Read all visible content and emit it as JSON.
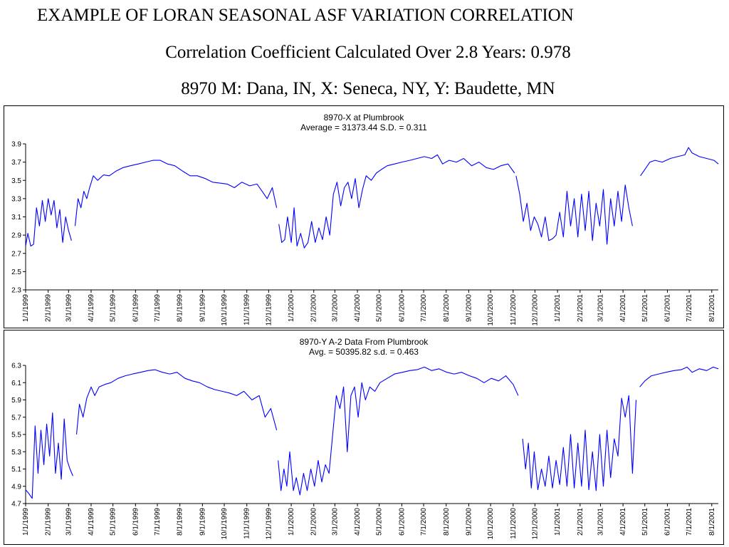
{
  "slide": {
    "title": "EXAMPLE OF LORAN SEASONAL ASF VARIATION CORRELATION",
    "subtitle": "Correlation  Coefficient  Calculated Over 2.8 Years:  0.978",
    "stations": "8970 M: Dana, IN, X: Seneca, NY, Y: Baudette, MN"
  },
  "chart_data": [
    {
      "type": "line",
      "title": "8970-X at Plumbrook",
      "subtitle": "Average = 31373.44      S.D. =  0.311",
      "color": "#0000ff",
      "ylim": [
        2.3,
        3.9
      ],
      "yticks": [
        2.3,
        2.5,
        2.7,
        2.9,
        3.1,
        3.3,
        3.5,
        3.7,
        3.9
      ],
      "ytick_labels": [
        "2.3",
        "2.5",
        "2.7",
        "2.9",
        "3.1",
        "3.3",
        "3.5",
        "3.7",
        "3.9"
      ],
      "xlim": [
        "1999-01-01",
        "2001-08-10"
      ],
      "xtick_labels": [
        "1/1/1999",
        "2/1/1999",
        "3/1/1999",
        "4/1/1999",
        "5/1/1999",
        "6/1/1999",
        "7/1/1999",
        "8/1/1999",
        "9/1/1999",
        "10/1/1999",
        "11/1/1999",
        "12/1/1999",
        "1/1/2000",
        "2/1/2000",
        "3/1/2000",
        "4/1/2000",
        "5/1/2000",
        "6/1/2000",
        "7/1/2000",
        "8/1/2000",
        "9/1/2000",
        "10/1/2000",
        "11/1/2000",
        "12/1/2000",
        "1/1/2001",
        "2/1/2001",
        "3/1/2001",
        "4/1/2001",
        "5/1/2001",
        "6/1/2001",
        "7/1/2001",
        "8/1/2001"
      ],
      "series": [
        {
          "segments": [
            {
              "x": [
                "1999-01-01",
                "1999-01-04",
                "1999-01-08",
                "1999-01-12",
                "1999-01-16",
                "1999-01-20",
                "1999-01-24",
                "1999-01-28",
                "1999-02-01",
                "1999-02-05",
                "1999-02-09",
                "1999-02-13",
                "1999-02-17",
                "1999-02-21",
                "1999-02-25",
                "1999-03-01",
                "1999-03-05"
              ],
              "y": [
                2.78,
                2.92,
                2.78,
                2.8,
                3.2,
                3.0,
                3.28,
                3.05,
                3.3,
                3.12,
                3.28,
                2.98,
                3.18,
                2.82,
                3.1,
                2.95,
                2.84
              ]
            },
            {
              "x": [
                "1999-03-10",
                "1999-03-14",
                "1999-03-18",
                "1999-03-22",
                "1999-03-26",
                "1999-03-30",
                "1999-04-04",
                "1999-04-10",
                "1999-04-18",
                "1999-04-26",
                "1999-05-05",
                "1999-05-15",
                "1999-05-25",
                "1999-06-05",
                "1999-06-15",
                "1999-06-25",
                "1999-07-05",
                "1999-07-15",
                "1999-07-25",
                "1999-08-05",
                "1999-08-15",
                "1999-08-25",
                "1999-09-05",
                "1999-09-15",
                "1999-09-25",
                "1999-10-05",
                "1999-10-15",
                "1999-10-25",
                "1999-11-05",
                "1999-11-15",
                "1999-11-22",
                "1999-11-29",
                "1999-12-06",
                "1999-12-12"
              ],
              "y": [
                3.0,
                3.3,
                3.2,
                3.38,
                3.3,
                3.42,
                3.55,
                3.5,
                3.56,
                3.55,
                3.6,
                3.64,
                3.66,
                3.68,
                3.7,
                3.72,
                3.72,
                3.68,
                3.66,
                3.6,
                3.55,
                3.55,
                3.52,
                3.48,
                3.47,
                3.46,
                3.42,
                3.48,
                3.44,
                3.46,
                3.38,
                3.3,
                3.42,
                3.2
              ]
            },
            {
              "x": [
                "1999-12-15",
                "1999-12-19",
                "1999-12-23",
                "1999-12-27",
                "2000-01-01",
                "2000-01-05",
                "2000-01-09",
                "2000-01-14",
                "2000-01-19",
                "2000-01-24",
                "2000-01-29",
                "2000-02-03",
                "2000-02-08",
                "2000-02-13",
                "2000-02-18",
                "2000-02-23",
                "2000-02-28",
                "2000-03-04",
                "2000-03-09",
                "2000-03-14",
                "2000-03-19",
                "2000-03-24",
                "2000-03-29",
                "2000-04-03",
                "2000-04-08",
                "2000-04-13",
                "2000-04-20",
                "2000-04-27",
                "2000-05-04",
                "2000-05-12",
                "2000-05-22",
                "2000-06-01",
                "2000-06-12",
                "2000-06-22",
                "2000-07-02",
                "2000-07-12",
                "2000-07-20",
                "2000-07-27",
                "2000-08-05",
                "2000-08-15",
                "2000-08-25",
                "2000-09-05",
                "2000-09-15",
                "2000-09-25",
                "2000-10-05",
                "2000-10-15",
                "2000-10-25",
                "2000-11-03"
              ],
              "y": [
                3.02,
                2.82,
                2.85,
                3.1,
                2.82,
                3.2,
                2.78,
                2.92,
                2.76,
                2.82,
                3.05,
                2.82,
                2.98,
                2.85,
                3.1,
                2.9,
                3.35,
                3.48,
                3.22,
                3.42,
                3.48,
                3.3,
                3.52,
                3.2,
                3.4,
                3.55,
                3.5,
                3.58,
                3.62,
                3.66,
                3.68,
                3.7,
                3.72,
                3.74,
                3.76,
                3.74,
                3.78,
                3.68,
                3.72,
                3.7,
                3.74,
                3.66,
                3.7,
                3.64,
                3.62,
                3.66,
                3.68,
                3.58
              ]
            },
            {
              "x": [
                "2000-11-05",
                "2000-11-10",
                "2000-11-15",
                "2000-11-20",
                "2000-11-25",
                "2000-11-30",
                "2000-12-05",
                "2000-12-10",
                "2000-12-15",
                "2000-12-20",
                "2000-12-25",
                "2000-12-30",
                "2001-01-04",
                "2001-01-09",
                "2001-01-14",
                "2001-01-19",
                "2001-01-24",
                "2001-01-29",
                "2001-02-03",
                "2001-02-08",
                "2001-02-13",
                "2001-02-18",
                "2001-02-23",
                "2001-02-28",
                "2001-03-05",
                "2001-03-10",
                "2001-03-15",
                "2001-03-20",
                "2001-03-25",
                "2001-03-30",
                "2001-04-04",
                "2001-04-09",
                "2001-04-14"
              ],
              "y": [
                3.55,
                3.35,
                3.05,
                3.25,
                2.95,
                3.1,
                3.02,
                2.88,
                3.1,
                2.84,
                2.86,
                2.9,
                3.15,
                2.88,
                3.38,
                3.0,
                3.3,
                2.88,
                3.35,
                2.95,
                3.38,
                2.84,
                3.25,
                3.0,
                3.4,
                2.8,
                3.3,
                3.0,
                3.38,
                3.05,
                3.45,
                3.2,
                3.0
              ]
            },
            {
              "x": [
                "2001-04-25",
                "2001-05-01",
                "2001-05-08",
                "2001-05-15",
                "2001-05-25",
                "2001-06-05",
                "2001-06-15",
                "2001-06-25",
                "2001-06-30",
                "2001-07-05",
                "2001-07-15",
                "2001-07-25",
                "2001-08-04",
                "2001-08-10"
              ],
              "y": [
                3.55,
                3.62,
                3.7,
                3.72,
                3.7,
                3.74,
                3.76,
                3.78,
                3.86,
                3.8,
                3.76,
                3.74,
                3.72,
                3.68
              ]
            }
          ]
        }
      ]
    },
    {
      "type": "line",
      "title": "8970-Y A-2 Data From Plumbrook",
      "subtitle": "Avg. = 50395.82     s.d. = 0.463",
      "color": "#0000ff",
      "ylim": [
        4.7,
        6.3
      ],
      "yticks": [
        4.7,
        4.9,
        5.1,
        5.3,
        5.5,
        5.7,
        5.9,
        6.1,
        6.3
      ],
      "ytick_labels": [
        "4.7",
        "4.9",
        "5.1",
        "5.3",
        "5.5",
        "5.7",
        "5.9",
        "6.1",
        "6.3"
      ],
      "xlim": [
        "1999-01-01",
        "2001-08-10"
      ],
      "xtick_labels": [
        "1/1/1999",
        "2/1/1999",
        "3/1/1999",
        "4/1/1999",
        "5/1/1999",
        "6/1/1999",
        "7/1/1999",
        "8/1/1999",
        "9/1/1999",
        "10/1/1999",
        "11/1/1999",
        "12/1/1999",
        "1/1/2000",
        "2/1/2000",
        "3/1/2000",
        "4/1/2000",
        "5/1/2000",
        "6/1/2000",
        "7/1/2000",
        "8/1/2000",
        "9/1/2000",
        "10/1/2000",
        "11/1/2000",
        "12/1/2000",
        "1/1/2001",
        "2/1/2001",
        "3/1/2001",
        "4/1/2001",
        "5/1/2001",
        "6/1/2001",
        "7/1/2001",
        "8/1/2001"
      ],
      "series": [
        {
          "segments": [
            {
              "x": [
                "1999-01-01",
                "1999-01-05",
                "1999-01-10",
                "1999-01-14",
                "1999-01-18",
                "1999-01-22",
                "1999-01-26",
                "1999-01-30",
                "1999-02-03",
                "1999-02-07",
                "1999-02-11",
                "1999-02-15",
                "1999-02-19",
                "1999-02-23",
                "1999-02-27",
                "1999-03-03",
                "1999-03-07"
              ],
              "y": [
                4.86,
                4.82,
                4.76,
                5.6,
                5.05,
                5.55,
                5.15,
                5.62,
                5.25,
                5.75,
                5.05,
                5.4,
                4.98,
                5.68,
                5.2,
                5.1,
                5.02
              ]
            },
            {
              "x": [
                "1999-03-12",
                "1999-03-16",
                "1999-03-21",
                "1999-03-26",
                "1999-04-01",
                "1999-04-06",
                "1999-04-12",
                "1999-04-20",
                "1999-04-28",
                "1999-05-08",
                "1999-05-18",
                "1999-05-28",
                "1999-06-08",
                "1999-06-18",
                "1999-06-28",
                "1999-07-08",
                "1999-07-18",
                "1999-07-28",
                "1999-08-08",
                "1999-08-18",
                "1999-08-28",
                "1999-09-08",
                "1999-09-18",
                "1999-09-28",
                "1999-10-08",
                "1999-10-18",
                "1999-10-28",
                "1999-11-08",
                "1999-11-18",
                "1999-11-26",
                "1999-12-04",
                "1999-12-12"
              ],
              "y": [
                5.5,
                5.85,
                5.7,
                5.92,
                6.05,
                5.95,
                6.05,
                6.08,
                6.1,
                6.15,
                6.18,
                6.2,
                6.22,
                6.24,
                6.25,
                6.22,
                6.2,
                6.22,
                6.15,
                6.12,
                6.1,
                6.05,
                6.02,
                6.0,
                5.98,
                5.95,
                6.0,
                5.9,
                5.95,
                5.7,
                5.8,
                5.55
              ]
            },
            {
              "x": [
                "1999-12-14",
                "1999-12-18",
                "1999-12-22",
                "1999-12-26",
                "1999-12-30",
                "2000-01-04",
                "2000-01-08",
                "2000-01-13",
                "2000-01-18",
                "2000-01-23",
                "2000-01-28",
                "2000-02-02",
                "2000-02-07",
                "2000-02-12",
                "2000-02-17",
                "2000-02-22",
                "2000-02-27",
                "2000-03-03",
                "2000-03-08",
                "2000-03-13",
                "2000-03-18",
                "2000-03-23",
                "2000-03-28",
                "2000-04-02",
                "2000-04-07",
                "2000-04-12",
                "2000-04-18",
                "2000-04-25",
                "2000-05-02",
                "2000-05-12",
                "2000-05-22",
                "2000-06-02",
                "2000-06-12",
                "2000-06-22",
                "2000-07-02",
                "2000-07-12",
                "2000-07-22",
                "2000-08-02",
                "2000-08-12",
                "2000-08-22",
                "2000-09-02",
                "2000-09-12",
                "2000-09-22",
                "2000-10-02",
                "2000-10-12",
                "2000-10-22",
                "2000-11-01",
                "2000-11-08"
              ],
              "y": [
                5.2,
                4.85,
                5.1,
                4.9,
                5.3,
                4.85,
                5.0,
                4.8,
                5.05,
                4.85,
                5.1,
                4.9,
                5.2,
                4.95,
                5.15,
                5.05,
                5.5,
                5.95,
                5.8,
                6.05,
                5.3,
                5.95,
                6.05,
                5.7,
                6.1,
                5.9,
                6.05,
                6.0,
                6.1,
                6.15,
                6.2,
                6.22,
                6.24,
                6.25,
                6.28,
                6.24,
                6.26,
                6.22,
                6.2,
                6.22,
                6.18,
                6.15,
                6.1,
                6.15,
                6.12,
                6.18,
                6.08,
                5.95
              ]
            },
            {
              "x": [
                "2000-11-14",
                "2000-11-18",
                "2000-11-22",
                "2000-11-26",
                "2000-11-30",
                "2000-12-05",
                "2000-12-10",
                "2000-12-15",
                "2000-12-20",
                "2000-12-25",
                "2000-12-30",
                "2001-01-04",
                "2001-01-09",
                "2001-01-14",
                "2001-01-19",
                "2001-01-24",
                "2001-01-29",
                "2001-02-03",
                "2001-02-08",
                "2001-02-13",
                "2001-02-18",
                "2001-02-23",
                "2001-02-28",
                "2001-03-05",
                "2001-03-10",
                "2001-03-15",
                "2001-03-20",
                "2001-03-25",
                "2001-03-30",
                "2001-04-04",
                "2001-04-09",
                "2001-04-14",
                "2001-04-19"
              ],
              "y": [
                5.45,
                5.1,
                5.4,
                4.88,
                5.3,
                4.86,
                5.1,
                4.9,
                5.25,
                4.88,
                5.2,
                4.92,
                5.35,
                4.9,
                5.5,
                4.88,
                5.4,
                4.9,
                5.55,
                4.86,
                5.3,
                4.85,
                5.5,
                4.9,
                5.55,
                5.0,
                5.45,
                5.25,
                5.92,
                5.7,
                5.95,
                5.05,
                5.9
              ]
            },
            {
              "x": [
                "2001-04-24",
                "2001-05-01",
                "2001-05-10",
                "2001-05-20",
                "2001-05-30",
                "2001-06-10",
                "2001-06-20",
                "2001-06-28",
                "2001-07-05",
                "2001-07-15",
                "2001-07-25",
                "2001-08-03",
                "2001-08-10"
              ],
              "y": [
                6.05,
                6.12,
                6.18,
                6.2,
                6.22,
                6.24,
                6.25,
                6.28,
                6.22,
                6.26,
                6.24,
                6.28,
                6.26
              ]
            }
          ]
        }
      ]
    }
  ]
}
